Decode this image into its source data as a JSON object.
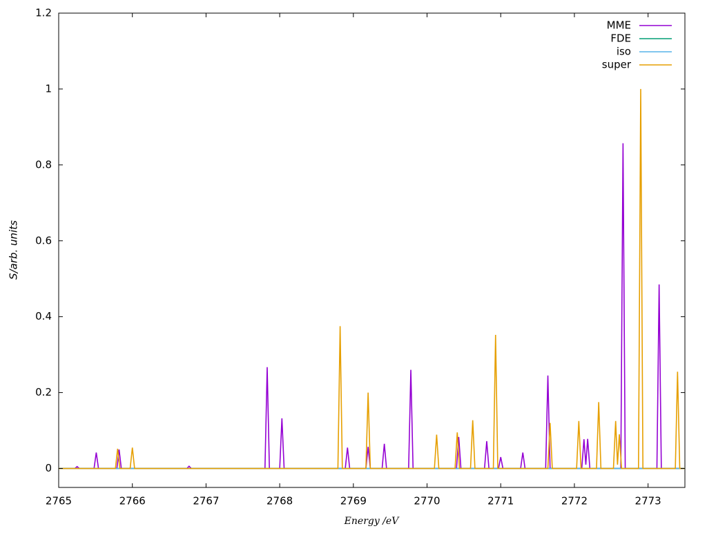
{
  "chart_data": {
    "type": "line",
    "xlabel": "Energy /eV",
    "ylabel": "S/arb. units",
    "xlim": [
      2765,
      2773.5
    ],
    "ylim": [
      -0.05,
      1.2
    ],
    "xticks": [
      2765,
      2766,
      2767,
      2768,
      2769,
      2770,
      2771,
      2772,
      2773
    ],
    "yticks": [
      0,
      0.2,
      0.4,
      0.6,
      0.8,
      1,
      1.2
    ],
    "legend": "top-right",
    "series": [
      {
        "name": "MME",
        "color": "#9400d3",
        "x": [
          2765,
          2765.22,
          2765.25,
          2765.28,
          2765.48,
          2765.51,
          2765.54,
          2765.79,
          2765.82,
          2765.85,
          2766.74,
          2766.77,
          2766.8,
          2767.8,
          2767.83,
          2767.86,
          2768.0,
          2768.03,
          2768.06,
          2768.89,
          2768.92,
          2768.95,
          2769.17,
          2769.2,
          2769.23,
          2769.39,
          2769.42,
          2769.45,
          2769.75,
          2769.78,
          2769.81,
          2770.4,
          2770.43,
          2770.46,
          2770.78,
          2770.81,
          2770.84,
          2770.97,
          2771.0,
          2771.03,
          2771.27,
          2771.3,
          2771.33,
          2771.61,
          2771.64,
          2771.67,
          2772.1,
          2772.13,
          2772.155,
          2772.18,
          2772.21,
          2772.63,
          2772.66,
          2772.69,
          2773.12,
          2773.15,
          2773.18,
          2773.5
        ],
        "values": [
          0,
          0,
          0.005,
          0,
          0,
          0.042,
          0,
          0,
          0.05,
          0,
          0,
          0.006,
          0,
          0,
          0.267,
          0,
          0,
          0.132,
          0,
          0,
          0.055,
          0,
          0,
          0.057,
          0,
          0,
          0.065,
          0,
          0,
          0.26,
          0,
          0,
          0.083,
          0,
          0,
          0.072,
          0,
          0,
          0.03,
          0,
          0,
          0.042,
          0,
          0,
          0.245,
          0,
          0,
          0.077,
          0.01,
          0.078,
          0,
          0,
          0.857,
          0,
          0,
          0.485,
          0,
          0
        ]
      },
      {
        "name": "FDE",
        "color": "#009e73",
        "x": [
          2765,
          2773.5
        ],
        "values": [
          0,
          0
        ]
      },
      {
        "name": "iso",
        "color": "#56b4e9",
        "x": [
          2765,
          2773.5
        ],
        "values": [
          0,
          0
        ]
      },
      {
        "name": "super",
        "color": "#e69f00",
        "x": [
          2765,
          2765.77,
          2765.8,
          2765.83,
          2765.97,
          2766.0,
          2766.03,
          2768.79,
          2768.82,
          2768.85,
          2769.17,
          2769.2,
          2769.23,
          2770.1,
          2770.13,
          2770.16,
          2770.38,
          2770.41,
          2770.44,
          2770.59,
          2770.62,
          2770.65,
          2770.9,
          2770.93,
          2770.96,
          2771.64,
          2771.67,
          2771.7,
          2772.03,
          2772.06,
          2772.09,
          2772.3,
          2772.33,
          2772.36,
          2772.53,
          2772.56,
          2772.585,
          2772.61,
          2772.64,
          2772.87,
          2772.9,
          2772.93,
          2773.37,
          2773.4,
          2773.43,
          2773.5
        ],
        "values": [
          0,
          0,
          0.052,
          0,
          0,
          0.055,
          0,
          0,
          0.375,
          0,
          0,
          0.2,
          0,
          0,
          0.089,
          0,
          0,
          0.095,
          0,
          0,
          0.127,
          0,
          0,
          0.352,
          0,
          0,
          0.12,
          0,
          0,
          0.125,
          0,
          0,
          0.175,
          0,
          0,
          0.125,
          0.01,
          0.09,
          0,
          0,
          1.0,
          0,
          0,
          0.255,
          0,
          0
        ]
      }
    ]
  }
}
